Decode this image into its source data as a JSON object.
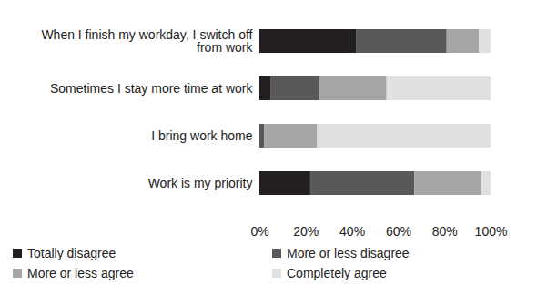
{
  "chart_data": {
    "type": "bar",
    "orientation": "horizontal",
    "stacked": true,
    "categories": [
      "When I finish my workday, I switch off from work",
      "Sometimes I stay more time at work",
      "I bring work home",
      "Work is my priority"
    ],
    "series": [
      {
        "name": "Totally disagree",
        "color": "#231f20",
        "values": [
          42,
          5,
          0,
          22
        ]
      },
      {
        "name": "More or less disagree",
        "color": "#595959",
        "values": [
          39,
          21,
          2,
          45
        ]
      },
      {
        "name": "More or less agree",
        "color": "#a6a6a6",
        "values": [
          14,
          29,
          23,
          29
        ]
      },
      {
        "name": "Completely agree",
        "color": "#e0e0e0",
        "values": [
          5,
          45,
          75,
          4
        ]
      }
    ],
    "xlim": [
      0,
      100
    ],
    "xticks": [
      {
        "value": 0,
        "label": "0%"
      },
      {
        "value": 20,
        "label": "20%"
      },
      {
        "value": 40,
        "label": "40%"
      },
      {
        "value": 60,
        "label": "60%"
      },
      {
        "value": 80,
        "label": "80%"
      },
      {
        "value": 100,
        "label": "100%"
      }
    ],
    "grid": false,
    "legend": "bottom"
  }
}
